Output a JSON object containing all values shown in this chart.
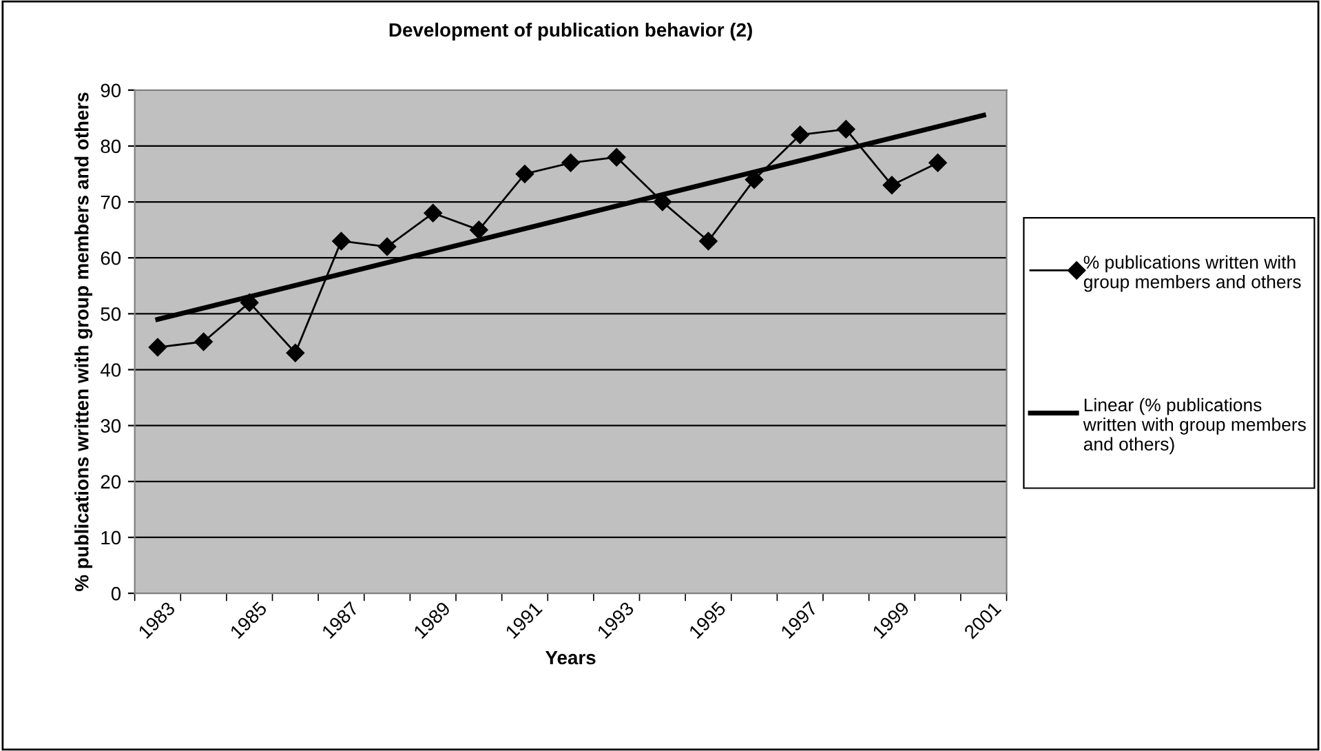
{
  "chart_data": {
    "type": "line",
    "title": "Development of publication behavior (2)",
    "xlabel": "Years",
    "ylabel": "% publications written with group members and others",
    "categories": [
      "1983",
      null,
      "1985",
      null,
      "1987",
      null,
      "1989",
      null,
      "1991",
      null,
      "1993",
      null,
      "1995",
      null,
      "1997",
      null,
      "1999",
      null,
      "2001"
    ],
    "series": [
      {
        "name": "% publications written with group members and others",
        "color": "#000000",
        "marker": "diamond",
        "values": [
          44,
          45,
          52,
          43,
          63,
          62,
          68,
          65,
          75,
          77,
          78,
          70,
          63,
          74,
          82,
          83,
          73,
          77,
          null
        ]
      },
      {
        "name": "Linear (% publications written with group members and others)",
        "color": "#000000",
        "marker": "none",
        "values": [
          49,
          null,
          null,
          null,
          null,
          null,
          null,
          null,
          null,
          null,
          null,
          null,
          null,
          null,
          null,
          null,
          null,
          null,
          85.5
        ]
      }
    ],
    "ylim": [
      0,
      90
    ],
    "yticks": [
      0,
      10,
      20,
      30,
      40,
      50,
      60,
      70,
      80,
      90
    ],
    "grid": "y",
    "legend": "right"
  }
}
